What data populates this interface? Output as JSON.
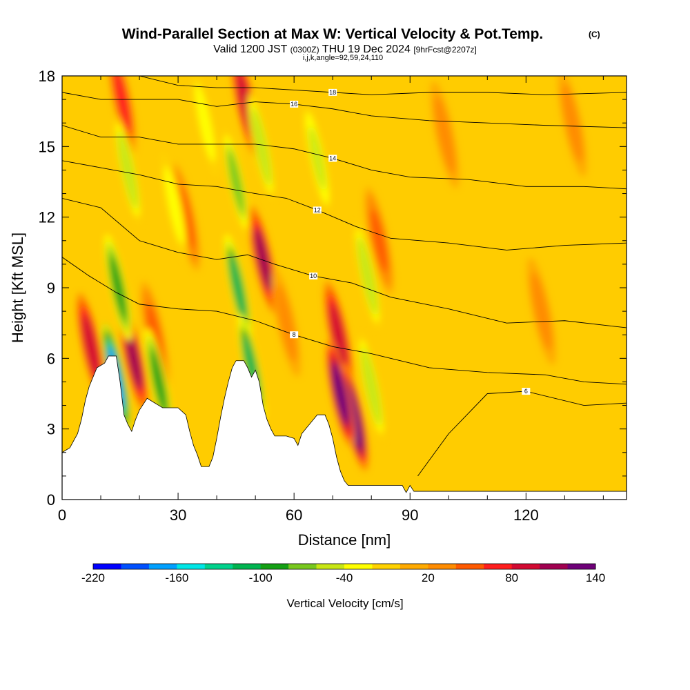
{
  "chart_data": {
    "type": "heatmap",
    "title": "Wind-Parallel Section at Max W: Vertical Velocity & Pot.Temp.",
    "title_mark": "(C)",
    "subtitle": {
      "valid_label": "Valid 1200 JST",
      "utc": "(0300Z)",
      "date": "THU 19 Dec 2024",
      "forecast": "[9hrFcst@2207z]"
    },
    "ijk_note": "i,j,k,angle=92,59,24,110",
    "xlabel": "Distance [nm]",
    "ylabel": "Height [Kft MSL]",
    "xlim": [
      0,
      146
    ],
    "ylim": [
      0,
      18
    ],
    "x_ticks": [
      0,
      30,
      60,
      90,
      120
    ],
    "y_ticks": [
      0,
      3,
      6,
      9,
      12,
      15,
      18
    ],
    "grid": false,
    "colorbar": {
      "label": "Vertical Velocity [cm/s]",
      "range": [
        -220,
        140
      ],
      "step": 20,
      "tick_values": [
        -220,
        -160,
        -100,
        -40,
        20,
        80,
        140
      ],
      "colors": [
        "#0000ff",
        "#0050ff",
        "#00a0ff",
        "#00e6e6",
        "#00d28c",
        "#00b450",
        "#14a014",
        "#78c81e",
        "#c8e614",
        "#ffff00",
        "#ffd200",
        "#ffaa00",
        "#ff8c00",
        "#ff5a00",
        "#ff1e1e",
        "#d20a32",
        "#a00050",
        "#6e0078"
      ]
    },
    "terrain": [
      [
        0,
        2
      ],
      [
        2,
        2.2
      ],
      [
        3,
        2.5
      ],
      [
        4,
        2.8
      ],
      [
        5,
        3.4
      ],
      [
        6,
        4.2
      ],
      [
        7,
        4.8
      ],
      [
        8,
        5.2
      ],
      [
        9,
        5.6
      ],
      [
        11,
        5.8
      ],
      [
        12,
        6.1
      ],
      [
        14,
        6.1
      ],
      [
        15,
        5.0
      ],
      [
        16,
        3.6
      ],
      [
        17,
        3.2
      ],
      [
        18,
        2.9
      ],
      [
        19,
        3.4
      ],
      [
        20,
        3.8
      ],
      [
        22,
        4.3
      ],
      [
        24,
        4.1
      ],
      [
        25,
        4.0
      ],
      [
        26,
        3.9
      ],
      [
        28,
        3.9
      ],
      [
        30,
        3.9
      ],
      [
        32,
        3.6
      ],
      [
        33,
        2.9
      ],
      [
        34,
        2.3
      ],
      [
        35,
        1.9
      ],
      [
        36,
        1.4
      ],
      [
        38,
        1.4
      ],
      [
        39,
        1.8
      ],
      [
        40,
        2.6
      ],
      [
        41,
        3.5
      ],
      [
        42,
        4.3
      ],
      [
        43,
        5.0
      ],
      [
        44,
        5.6
      ],
      [
        45,
        5.9
      ],
      [
        47,
        5.9
      ],
      [
        48,
        5.6
      ],
      [
        49,
        5.2
      ],
      [
        50,
        5.5
      ],
      [
        51,
        5.0
      ],
      [
        52,
        4.0
      ],
      [
        53,
        3.4
      ],
      [
        54,
        3.0
      ],
      [
        55,
        2.7
      ],
      [
        58,
        2.7
      ],
      [
        60,
        2.6
      ],
      [
        61,
        2.3
      ],
      [
        62,
        2.8
      ],
      [
        63,
        3.0
      ],
      [
        64,
        3.2
      ],
      [
        65,
        3.4
      ],
      [
        66,
        3.6
      ],
      [
        67,
        3.6
      ],
      [
        68,
        3.6
      ],
      [
        69,
        3.2
      ],
      [
        70,
        2.6
      ],
      [
        71,
        1.8
      ],
      [
        72,
        1.2
      ],
      [
        73,
        0.8
      ],
      [
        74,
        0.6
      ],
      [
        88,
        0.6
      ],
      [
        89,
        0.3
      ],
      [
        90,
        0.6
      ],
      [
        91,
        0.35
      ],
      [
        146,
        0.35
      ]
    ],
    "updrafts": [
      {
        "x": 7.5,
        "z": 6.5,
        "w": 95
      },
      {
        "x": 18.5,
        "z": 6.0,
        "w": 100
      },
      {
        "x": 15.5,
        "z": 17.0,
        "w": 70
      },
      {
        "x": 47.5,
        "z": 16.8,
        "w": 85
      },
      {
        "x": 52.0,
        "z": 10.2,
        "w": 100
      },
      {
        "x": 71.5,
        "z": 7.0,
        "w": 90
      },
      {
        "x": 75.5,
        "z": 3.5,
        "w": 135
      },
      {
        "x": 72.0,
        "z": 4.5,
        "w": 120
      },
      {
        "x": 24.0,
        "z": 7.0,
        "w": 40
      },
      {
        "x": 32.0,
        "z": 12.0,
        "w": 40
      },
      {
        "x": 82.0,
        "z": 11.0,
        "w": 45
      },
      {
        "x": 124.0,
        "z": 8.0,
        "w": 35
      },
      {
        "x": 132.0,
        "z": 16.0,
        "w": 35
      },
      {
        "x": 99.0,
        "z": 15.5,
        "w": 30
      },
      {
        "x": 58.0,
        "z": 7.5,
        "w": 35
      }
    ],
    "downdrafts": [
      {
        "x": 14.0,
        "z": 5.2,
        "w": -165
      },
      {
        "x": 14.5,
        "z": 9.0,
        "w": -90
      },
      {
        "x": 17.0,
        "z": 14.0,
        "w": -55
      },
      {
        "x": 25.0,
        "z": 5.0,
        "w": -85
      },
      {
        "x": 45.5,
        "z": 9.0,
        "w": -110
      },
      {
        "x": 49.0,
        "z": 5.6,
        "w": -115
      },
      {
        "x": 45.0,
        "z": 13.5,
        "w": -75
      },
      {
        "x": 51.5,
        "z": 15.0,
        "w": -55
      },
      {
        "x": 79.0,
        "z": 9.5,
        "w": -55
      },
      {
        "x": 80.0,
        "z": 4.8,
        "w": -55
      },
      {
        "x": 66.0,
        "z": 14.5,
        "w": -45
      },
      {
        "x": 37.0,
        "z": 16.0,
        "w": -40
      },
      {
        "x": 29.0,
        "z": 12.5,
        "w": -40
      }
    ],
    "theta_contours": [
      {
        "label": "6",
        "points": [
          [
            92,
            1.0
          ],
          [
            100,
            2.8
          ],
          [
            110,
            4.5
          ],
          [
            120,
            4.6
          ],
          [
            135,
            4.0
          ],
          [
            146,
            4.1
          ]
        ]
      },
      {
        "label": "8",
        "points": [
          [
            0,
            10.3
          ],
          [
            7,
            9.5
          ],
          [
            14,
            8.8
          ],
          [
            20,
            8.3
          ],
          [
            30,
            8.1
          ],
          [
            40,
            8.0
          ],
          [
            50,
            7.6
          ],
          [
            60,
            7.0
          ],
          [
            70,
            6.5
          ],
          [
            80,
            6.2
          ],
          [
            95,
            5.6
          ],
          [
            110,
            5.4
          ],
          [
            125,
            5.3
          ],
          [
            135,
            5.0
          ],
          [
            146,
            4.9
          ]
        ]
      },
      {
        "label": "10",
        "points": [
          [
            0,
            12.8
          ],
          [
            10,
            12.4
          ],
          [
            20,
            11.0
          ],
          [
            30,
            10.5
          ],
          [
            40,
            10.2
          ],
          [
            48,
            10.4
          ],
          [
            55,
            10.0
          ],
          [
            65,
            9.5
          ],
          [
            75,
            9.2
          ],
          [
            85,
            8.6
          ],
          [
            100,
            8.1
          ],
          [
            115,
            7.5
          ],
          [
            130,
            7.6
          ],
          [
            146,
            7.3
          ]
        ]
      },
      {
        "label": "12",
        "points": [
          [
            0,
            14.4
          ],
          [
            10,
            14.1
          ],
          [
            20,
            13.8
          ],
          [
            30,
            13.4
          ],
          [
            40,
            13.3
          ],
          [
            50,
            13.0
          ],
          [
            58,
            12.8
          ],
          [
            66,
            12.3
          ],
          [
            76,
            11.6
          ],
          [
            85,
            11.1
          ],
          [
            100,
            10.9
          ],
          [
            115,
            10.6
          ],
          [
            130,
            10.8
          ],
          [
            146,
            10.9
          ]
        ]
      },
      {
        "label": "14",
        "points": [
          [
            0,
            15.9
          ],
          [
            10,
            15.4
          ],
          [
            20,
            15.4
          ],
          [
            30,
            15.1
          ],
          [
            40,
            15.1
          ],
          [
            50,
            15.1
          ],
          [
            60,
            14.9
          ],
          [
            70,
            14.5
          ],
          [
            80,
            14.0
          ],
          [
            90,
            13.7
          ],
          [
            105,
            13.6
          ],
          [
            120,
            13.3
          ],
          [
            135,
            13.3
          ],
          [
            146,
            13.2
          ]
        ]
      },
      {
        "label": "16",
        "points": [
          [
            0,
            17.3
          ],
          [
            10,
            17.0
          ],
          [
            20,
            17.0
          ],
          [
            30,
            17.0
          ],
          [
            40,
            16.7
          ],
          [
            50,
            16.9
          ],
          [
            60,
            16.8
          ],
          [
            70,
            16.6
          ],
          [
            80,
            16.3
          ],
          [
            95,
            16.1
          ],
          [
            110,
            16.0
          ],
          [
            125,
            15.9
          ],
          [
            146,
            15.8
          ]
        ]
      },
      {
        "label": "18",
        "points": [
          [
            20,
            18.0
          ],
          [
            30,
            17.6
          ],
          [
            40,
            17.5
          ],
          [
            50,
            17.5
          ],
          [
            60,
            17.4
          ],
          [
            70,
            17.3
          ],
          [
            80,
            17.2
          ],
          [
            95,
            17.3
          ],
          [
            110,
            17.3
          ],
          [
            125,
            17.2
          ],
          [
            146,
            17.3
          ]
        ]
      }
    ]
  }
}
